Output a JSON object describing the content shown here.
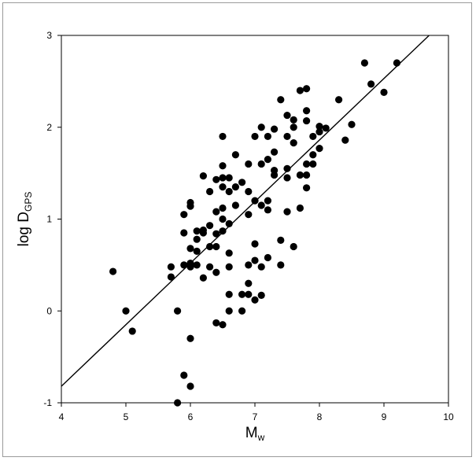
{
  "chart_data": {
    "type": "scatter",
    "xlabel": "M",
    "xlabel_sub": "w",
    "ylabel": "log D",
    "ylabel_sub": "GPS",
    "xlim": [
      4,
      10
    ],
    "ylim": [
      -1,
      3
    ],
    "x_ticks": [
      "4",
      "5",
      "6",
      "7",
      "8",
      "9",
      "10"
    ],
    "y_ticks": [
      "-1",
      "0",
      "1",
      "2",
      "3"
    ],
    "grid": false,
    "legend": "none",
    "marker_color": "#000000",
    "fit_line": {
      "x": [
        4.0,
        9.7
      ],
      "y": [
        -0.82,
        3.0
      ]
    },
    "points": [
      {
        "x": 4.8,
        "y": 0.43
      },
      {
        "x": 5.0,
        "y": 0.0
      },
      {
        "x": 5.1,
        "y": -0.22
      },
      {
        "x": 5.7,
        "y": 0.48
      },
      {
        "x": 5.7,
        "y": 0.37
      },
      {
        "x": 5.8,
        "y": 0.0
      },
      {
        "x": 5.8,
        "y": -1.0
      },
      {
        "x": 5.9,
        "y": -0.7
      },
      {
        "x": 5.9,
        "y": 0.5
      },
      {
        "x": 5.9,
        "y": 0.85
      },
      {
        "x": 5.9,
        "y": 1.05
      },
      {
        "x": 6.0,
        "y": -0.3
      },
      {
        "x": 6.0,
        "y": -0.82
      },
      {
        "x": 6.0,
        "y": 0.48
      },
      {
        "x": 6.0,
        "y": 0.52
      },
      {
        "x": 6.0,
        "y": 0.68
      },
      {
        "x": 6.0,
        "y": 1.14
      },
      {
        "x": 6.0,
        "y": 1.18
      },
      {
        "x": 6.1,
        "y": 0.5
      },
      {
        "x": 6.1,
        "y": 0.65
      },
      {
        "x": 6.1,
        "y": 0.78
      },
      {
        "x": 6.1,
        "y": 0.87
      },
      {
        "x": 6.2,
        "y": 0.36
      },
      {
        "x": 6.2,
        "y": 0.85
      },
      {
        "x": 6.2,
        "y": 0.88
      },
      {
        "x": 6.2,
        "y": 1.47
      },
      {
        "x": 6.3,
        "y": 0.48
      },
      {
        "x": 6.3,
        "y": 0.7
      },
      {
        "x": 6.3,
        "y": 0.93
      },
      {
        "x": 6.3,
        "y": 1.3
      },
      {
        "x": 6.4,
        "y": -0.13
      },
      {
        "x": 6.4,
        "y": 0.42
      },
      {
        "x": 6.4,
        "y": 0.7
      },
      {
        "x": 6.4,
        "y": 0.84
      },
      {
        "x": 6.4,
        "y": 1.08
      },
      {
        "x": 6.4,
        "y": 1.43
      },
      {
        "x": 6.5,
        "y": -0.15
      },
      {
        "x": 6.5,
        "y": 0.87
      },
      {
        "x": 6.5,
        "y": 1.0
      },
      {
        "x": 6.5,
        "y": 1.12
      },
      {
        "x": 6.5,
        "y": 1.35
      },
      {
        "x": 6.5,
        "y": 1.45
      },
      {
        "x": 6.5,
        "y": 1.58
      },
      {
        "x": 6.5,
        "y": 1.9
      },
      {
        "x": 6.6,
        "y": 0.0
      },
      {
        "x": 6.6,
        "y": 0.18
      },
      {
        "x": 6.6,
        "y": 0.48
      },
      {
        "x": 6.6,
        "y": 0.63
      },
      {
        "x": 6.6,
        "y": 0.95
      },
      {
        "x": 6.6,
        "y": 1.3
      },
      {
        "x": 6.6,
        "y": 1.45
      },
      {
        "x": 6.7,
        "y": 1.15
      },
      {
        "x": 6.7,
        "y": 1.35
      },
      {
        "x": 6.7,
        "y": 1.7
      },
      {
        "x": 6.8,
        "y": 0.0
      },
      {
        "x": 6.8,
        "y": 0.18
      },
      {
        "x": 6.8,
        "y": 1.4
      },
      {
        "x": 6.9,
        "y": 0.18
      },
      {
        "x": 6.9,
        "y": 0.3
      },
      {
        "x": 6.9,
        "y": 0.5
      },
      {
        "x": 6.9,
        "y": 1.05
      },
      {
        "x": 6.9,
        "y": 1.3
      },
      {
        "x": 6.9,
        "y": 1.6
      },
      {
        "x": 7.0,
        "y": 0.12
      },
      {
        "x": 7.0,
        "y": 0.55
      },
      {
        "x": 7.0,
        "y": 0.73
      },
      {
        "x": 7.0,
        "y": 1.2
      },
      {
        "x": 7.0,
        "y": 1.9
      },
      {
        "x": 7.1,
        "y": 0.17
      },
      {
        "x": 7.1,
        "y": 0.48
      },
      {
        "x": 7.1,
        "y": 1.15
      },
      {
        "x": 7.1,
        "y": 1.6
      },
      {
        "x": 7.1,
        "y": 2.0
      },
      {
        "x": 7.2,
        "y": 0.58
      },
      {
        "x": 7.2,
        "y": 1.1
      },
      {
        "x": 7.2,
        "y": 1.2
      },
      {
        "x": 7.2,
        "y": 1.65
      },
      {
        "x": 7.2,
        "y": 1.9
      },
      {
        "x": 7.3,
        "y": 1.48
      },
      {
        "x": 7.3,
        "y": 1.53
      },
      {
        "x": 7.3,
        "y": 1.73
      },
      {
        "x": 7.3,
        "y": 1.98
      },
      {
        "x": 7.4,
        "y": 0.5
      },
      {
        "x": 7.4,
        "y": 0.77
      },
      {
        "x": 7.4,
        "y": 2.3
      },
      {
        "x": 7.5,
        "y": 1.08
      },
      {
        "x": 7.5,
        "y": 1.45
      },
      {
        "x": 7.5,
        "y": 1.55
      },
      {
        "x": 7.5,
        "y": 1.9
      },
      {
        "x": 7.5,
        "y": 2.13
      },
      {
        "x": 7.6,
        "y": 0.7
      },
      {
        "x": 7.6,
        "y": 1.83
      },
      {
        "x": 7.6,
        "y": 2.0
      },
      {
        "x": 7.6,
        "y": 2.08
      },
      {
        "x": 7.7,
        "y": 1.12
      },
      {
        "x": 7.7,
        "y": 1.48
      },
      {
        "x": 7.7,
        "y": 2.4
      },
      {
        "x": 7.8,
        "y": 1.34
      },
      {
        "x": 7.8,
        "y": 1.48
      },
      {
        "x": 7.8,
        "y": 1.6
      },
      {
        "x": 7.8,
        "y": 2.07
      },
      {
        "x": 7.8,
        "y": 2.18
      },
      {
        "x": 7.8,
        "y": 2.42
      },
      {
        "x": 7.9,
        "y": 1.6
      },
      {
        "x": 7.9,
        "y": 1.7
      },
      {
        "x": 7.9,
        "y": 1.9
      },
      {
        "x": 8.0,
        "y": 1.77
      },
      {
        "x": 8.0,
        "y": 1.95
      },
      {
        "x": 8.0,
        "y": 2.01
      },
      {
        "x": 8.1,
        "y": 1.99
      },
      {
        "x": 8.3,
        "y": 2.3
      },
      {
        "x": 8.4,
        "y": 1.86
      },
      {
        "x": 8.5,
        "y": 2.03
      },
      {
        "x": 8.7,
        "y": 2.7
      },
      {
        "x": 8.8,
        "y": 2.47
      },
      {
        "x": 9.0,
        "y": 2.38
      },
      {
        "x": 9.2,
        "y": 2.7
      }
    ]
  }
}
